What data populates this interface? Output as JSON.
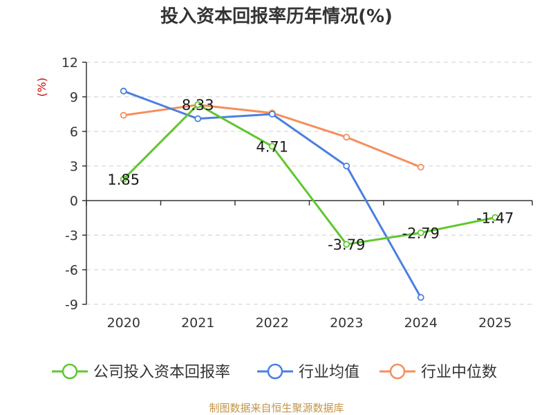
{
  "title": "投入资本回报率历年情况(%)",
  "source": "制图数据来自恒生聚源数据库",
  "colors": {
    "company": "#5ec72e",
    "industry_avg": "#4a7fe0",
    "industry_median": "#f58e5c",
    "ylabel": "#cc0000",
    "source": "#c29447"
  },
  "chart_data": {
    "type": "line",
    "title": "投入资本回报率历年情况(%)",
    "xlabel": "",
    "ylabel": "(%)",
    "ylim": [
      -9,
      12
    ],
    "yticks": [
      -9,
      -6,
      -3,
      0,
      3,
      6,
      9,
      12
    ],
    "categories": [
      "2020",
      "2021",
      "2022",
      "2023",
      "2024",
      "2025"
    ],
    "grid": true,
    "legend_position": "bottom",
    "series": [
      {
        "name": "公司投入资本回报率",
        "color_key": "company",
        "values": [
          1.85,
          8.33,
          4.71,
          -3.79,
          -2.79,
          -1.47
        ],
        "labels": [
          "1.85",
          "8.33",
          "4.71",
          "-3.79",
          "-2.79",
          "-1.47"
        ]
      },
      {
        "name": "行业均值",
        "color_key": "industry_avg",
        "values": [
          9.5,
          7.1,
          7.5,
          3.0,
          -8.4,
          null
        ]
      },
      {
        "name": "行业中位数",
        "color_key": "industry_median",
        "values": [
          7.4,
          8.3,
          7.6,
          5.5,
          2.9,
          null
        ]
      }
    ]
  }
}
